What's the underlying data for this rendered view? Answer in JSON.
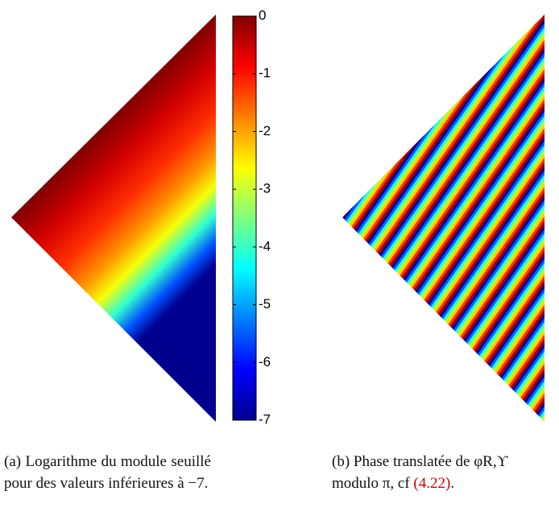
{
  "figures": [
    {
      "colorbar": {
        "lim": [
          -7,
          0
        ],
        "ticks": [
          0,
          -1,
          -2,
          -3,
          -4,
          -5,
          -6,
          -7
        ]
      },
      "caption": {
        "label": "(a)",
        "text": "Logarithme du module seuillé pour des valeurs inférieures à −7."
      }
    },
    {
      "caption": {
        "label": "(b)",
        "text": "Phase translatée de φR,ϒ modulo π, cf",
        "ref": "(4.22)",
        "end": "."
      }
    }
  ]
}
